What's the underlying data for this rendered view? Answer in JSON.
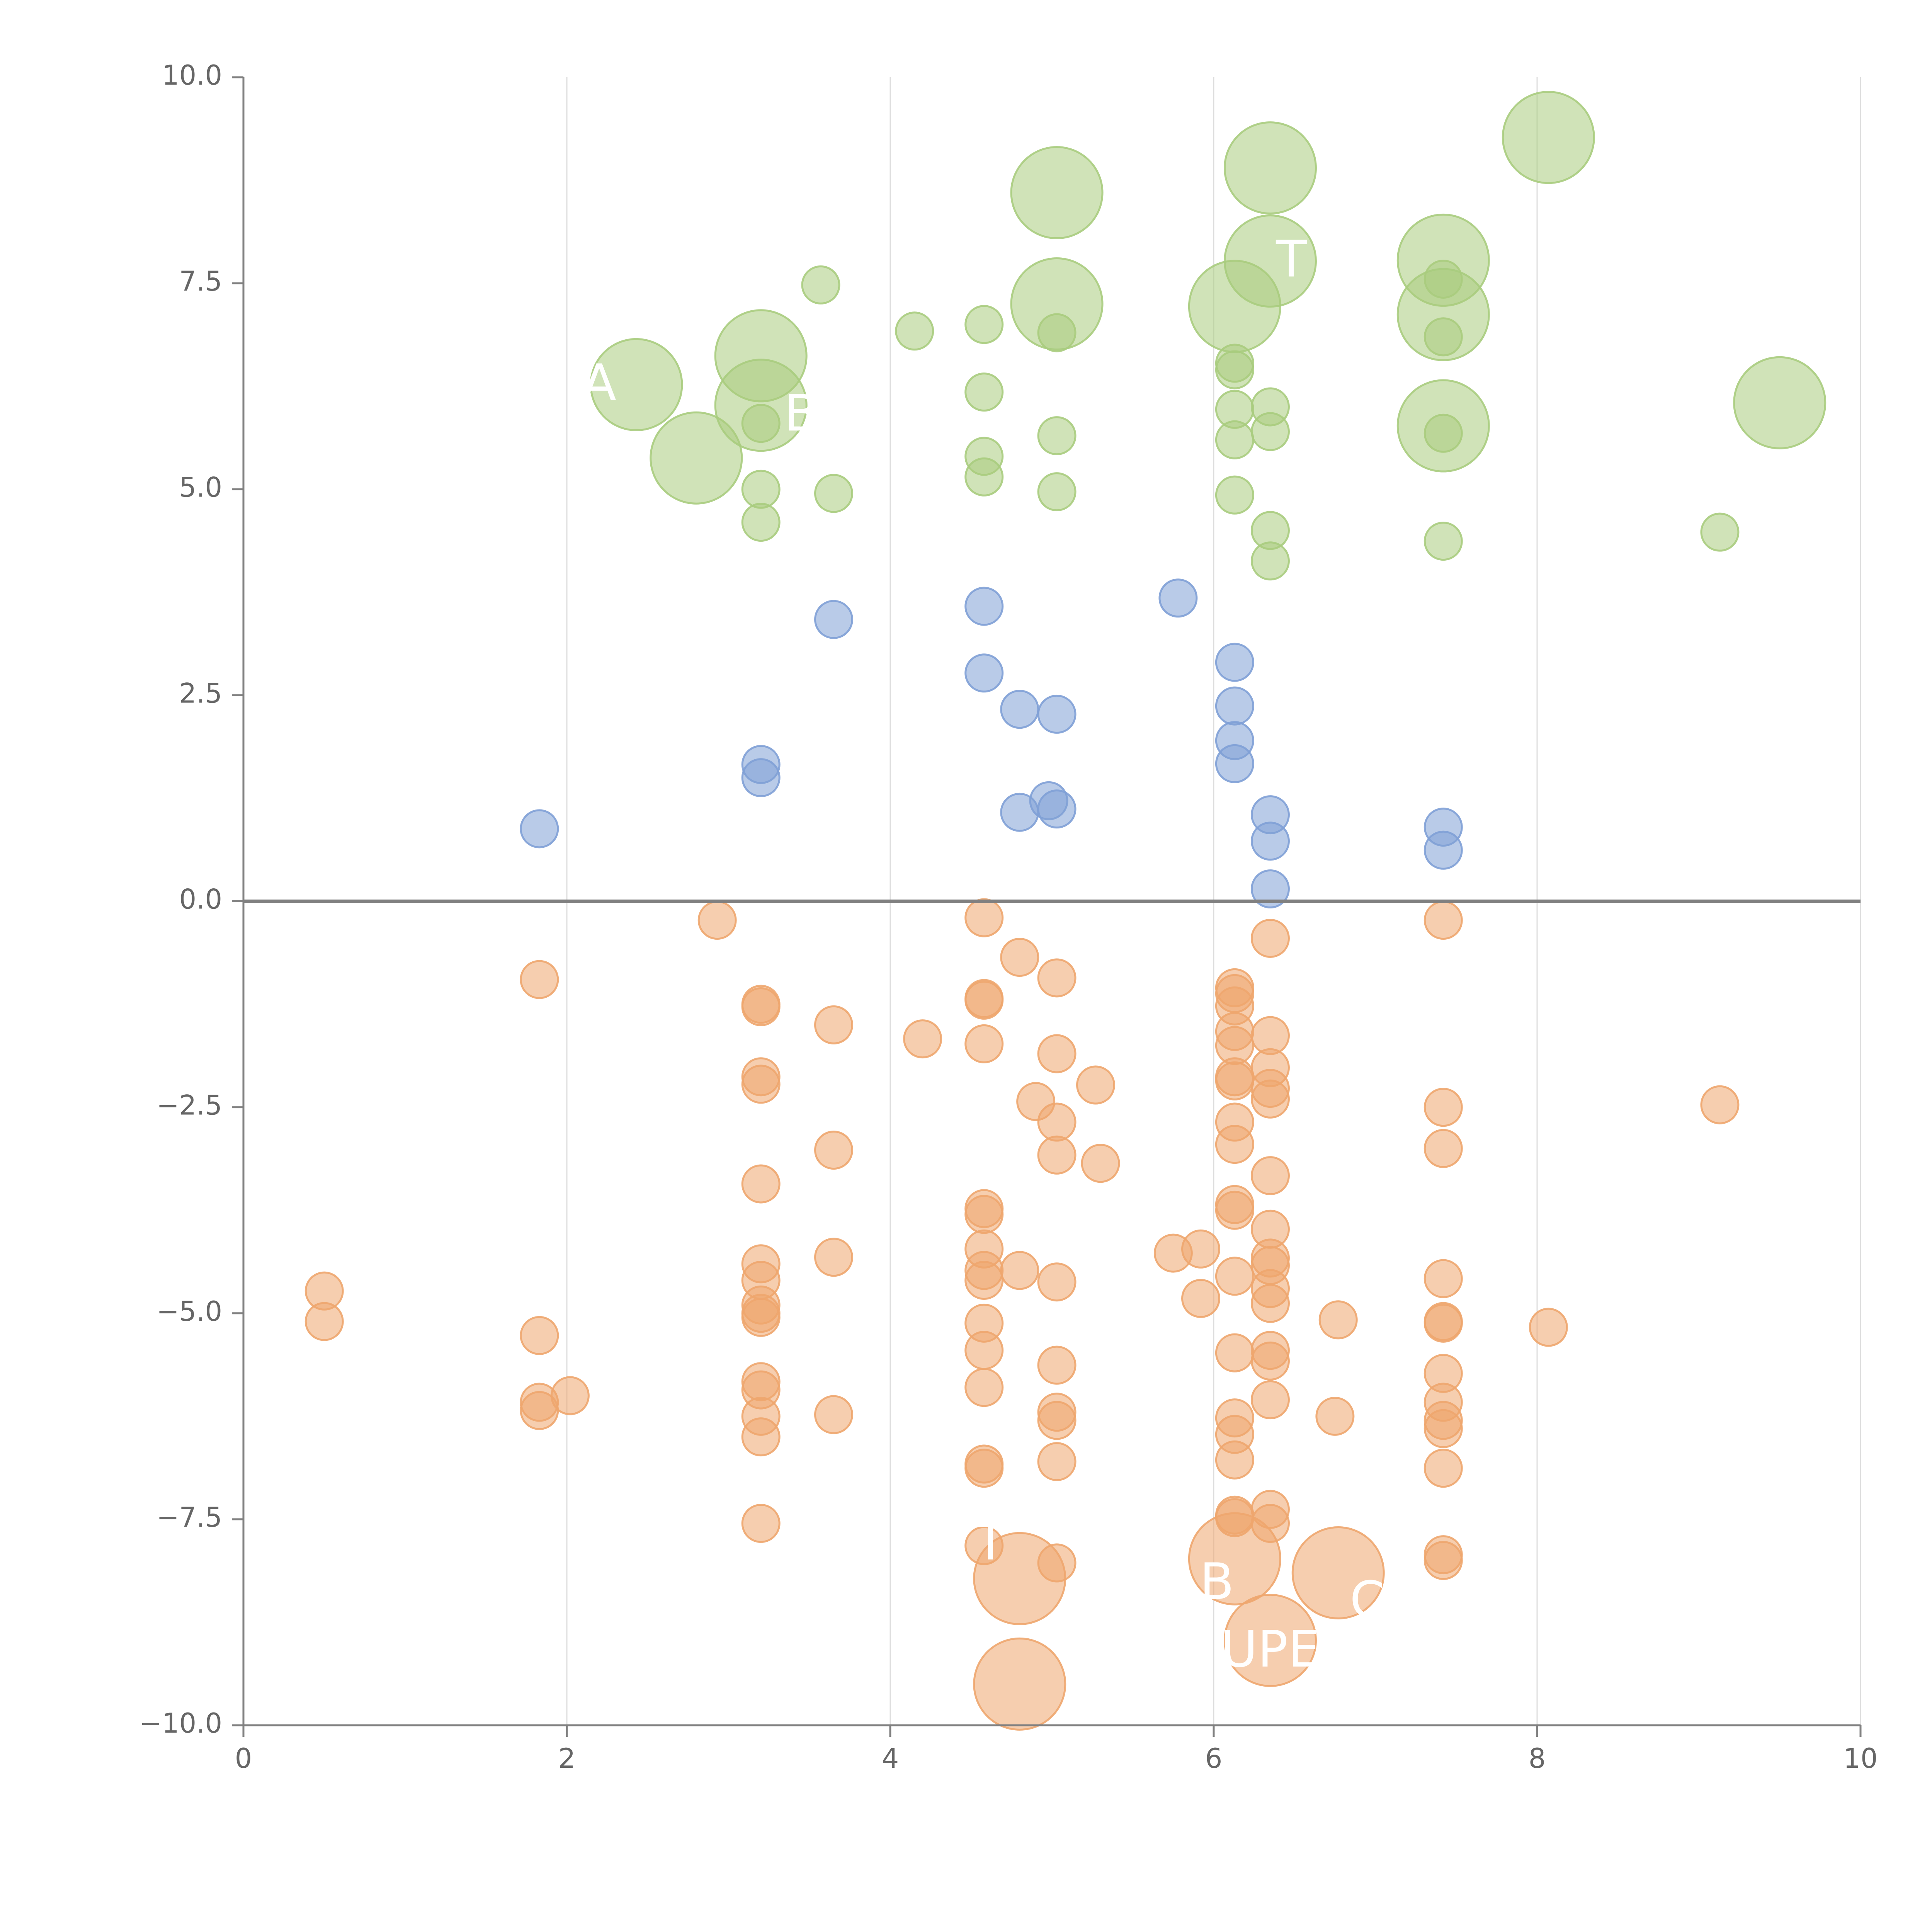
{
  "chart_data": {
    "type": "scatter",
    "title": "",
    "xlabel": "",
    "ylabel": "",
    "xlim": [
      0,
      10
    ],
    "ylim": [
      -10,
      10
    ],
    "x_ticks": [
      0,
      2,
      4,
      6,
      8,
      10
    ],
    "x_tick_labels": [
      "0",
      "2",
      "4",
      "6",
      "8",
      "10"
    ],
    "y_ticks": [
      -10,
      -7.5,
      -5,
      -2.5,
      0,
      2.5,
      5,
      7.5,
      10
    ],
    "y_tick_labels": [
      "−10.0",
      "−7.5",
      "−5.0",
      "−2.5",
      "0.0",
      "2.5",
      "5.0",
      "7.5",
      "10.0"
    ],
    "grid": {
      "vertical": true,
      "horizontal": false
    },
    "zero_line": 0,
    "colors": {
      "green": "#a9cc7e",
      "blue": "#7fa0d6",
      "orange": "#eea66e",
      "axis": "#808080",
      "grid": "#dddddd"
    },
    "series": [
      {
        "color": "green",
        "points": [
          {
            "x": 3.57,
            "y": 7.48,
            "s": 1
          },
          {
            "x": 4.15,
            "y": 6.92,
            "s": 1
          },
          {
            "x": 4.58,
            "y": 7.0,
            "s": 1
          },
          {
            "x": 4.58,
            "y": 6.18,
            "s": 1
          },
          {
            "x": 4.58,
            "y": 5.4,
            "s": 1
          },
          {
            "x": 4.58,
            "y": 5.15,
            "s": 1
          },
          {
            "x": 5.03,
            "y": 6.9,
            "s": 1
          },
          {
            "x": 5.03,
            "y": 5.65,
            "s": 1
          },
          {
            "x": 5.03,
            "y": 4.97,
            "s": 1
          },
          {
            "x": 3.2,
            "y": 5.8,
            "s": 1
          },
          {
            "x": 3.2,
            "y": 5.0,
            "s": 1
          },
          {
            "x": 3.2,
            "y": 4.6,
            "s": 1
          },
          {
            "x": 3.65,
            "y": 4.95,
            "s": 1
          },
          {
            "x": 6.13,
            "y": 6.53,
            "s": 1
          },
          {
            "x": 6.13,
            "y": 6.45,
            "s": 1
          },
          {
            "x": 6.13,
            "y": 5.97,
            "s": 1
          },
          {
            "x": 6.13,
            "y": 5.6,
            "s": 1
          },
          {
            "x": 6.13,
            "y": 4.93,
            "s": 1
          },
          {
            "x": 6.35,
            "y": 6.0,
            "s": 1
          },
          {
            "x": 6.35,
            "y": 5.7,
            "s": 1
          },
          {
            "x": 6.35,
            "y": 4.5,
            "s": 1
          },
          {
            "x": 6.35,
            "y": 4.13,
            "s": 1
          },
          {
            "x": 7.42,
            "y": 7.55,
            "s": 1
          },
          {
            "x": 7.42,
            "y": 6.85,
            "s": 1
          },
          {
            "x": 7.42,
            "y": 5.68,
            "s": 1
          },
          {
            "x": 7.42,
            "y": 4.37,
            "s": 1
          },
          {
            "x": 9.13,
            "y": 4.48,
            "s": 1
          },
          {
            "x": 2.43,
            "y": 6.27,
            "s": 3
          },
          {
            "x": 2.8,
            "y": 5.38,
            "s": 3
          },
          {
            "x": 3.2,
            "y": 6.62,
            "s": 3
          },
          {
            "x": 3.2,
            "y": 6.02,
            "s": 3
          },
          {
            "x": 5.03,
            "y": 8.6,
            "s": 3
          },
          {
            "x": 5.03,
            "y": 7.25,
            "s": 3
          },
          {
            "x": 6.13,
            "y": 7.22,
            "s": 3
          },
          {
            "x": 6.35,
            "y": 8.9,
            "s": 3
          },
          {
            "x": 6.35,
            "y": 7.77,
            "s": 3
          },
          {
            "x": 7.42,
            "y": 7.78,
            "s": 3
          },
          {
            "x": 7.42,
            "y": 7.12,
            "s": 3
          },
          {
            "x": 7.42,
            "y": 5.77,
            "s": 3
          },
          {
            "x": 8.07,
            "y": 9.27,
            "s": 3
          },
          {
            "x": 9.5,
            "y": 6.05,
            "s": 3
          }
        ]
      },
      {
        "color": "blue",
        "points": [
          {
            "x": 1.83,
            "y": 0.88,
            "s": 1
          },
          {
            "x": 3.2,
            "y": 1.66,
            "s": 1
          },
          {
            "x": 3.2,
            "y": 1.5,
            "s": 1
          },
          {
            "x": 3.65,
            "y": 3.42,
            "s": 1
          },
          {
            "x": 4.58,
            "y": 3.58,
            "s": 1
          },
          {
            "x": 4.58,
            "y": 2.77,
            "s": 1
          },
          {
            "x": 4.8,
            "y": 2.33,
            "s": 1
          },
          {
            "x": 4.8,
            "y": 1.08,
            "s": 1
          },
          {
            "x": 5.03,
            "y": 2.27,
            "s": 1
          },
          {
            "x": 4.98,
            "y": 1.22,
            "s": 1
          },
          {
            "x": 5.03,
            "y": 1.12,
            "s": 1
          },
          {
            "x": 5.78,
            "y": 3.68,
            "s": 1
          },
          {
            "x": 6.13,
            "y": 2.9,
            "s": 1
          },
          {
            "x": 6.13,
            "y": 2.37,
            "s": 1
          },
          {
            "x": 6.13,
            "y": 1.95,
            "s": 1
          },
          {
            "x": 6.13,
            "y": 1.67,
            "s": 1
          },
          {
            "x": 6.35,
            "y": 1.05,
            "s": 1
          },
          {
            "x": 6.35,
            "y": 0.73,
            "s": 1
          },
          {
            "x": 6.35,
            "y": 0.15,
            "s": 1
          },
          {
            "x": 7.42,
            "y": 0.9,
            "s": 1
          },
          {
            "x": 7.42,
            "y": 0.62,
            "s": 1
          }
        ]
      },
      {
        "color": "orange",
        "points": [
          {
            "x": 2.93,
            "y": -0.23,
            "s": 1
          },
          {
            "x": 1.83,
            "y": -0.95,
            "s": 1
          },
          {
            "x": 4.58,
            "y": -0.2,
            "s": 1
          },
          {
            "x": 4.8,
            "y": -0.68,
            "s": 1
          },
          {
            "x": 5.03,
            "y": -0.93,
            "s": 1
          },
          {
            "x": 3.2,
            "y": -1.28,
            "s": 1
          },
          {
            "x": 3.2,
            "y": -1.25,
            "s": 1
          },
          {
            "x": 3.65,
            "y": -1.5,
            "s": 1
          },
          {
            "x": 4.2,
            "y": -1.67,
            "s": 1
          },
          {
            "x": 4.58,
            "y": -1.2,
            "s": 1
          },
          {
            "x": 4.58,
            "y": -1.18,
            "s": 1
          },
          {
            "x": 4.58,
            "y": -1.73,
            "s": 1
          },
          {
            "x": 5.03,
            "y": -1.85,
            "s": 1
          },
          {
            "x": 3.2,
            "y": -2.13,
            "s": 1
          },
          {
            "x": 3.2,
            "y": -2.22,
            "s": 1
          },
          {
            "x": 4.9,
            "y": -2.43,
            "s": 1
          },
          {
            "x": 5.03,
            "y": -2.68,
            "s": 1
          },
          {
            "x": 5.27,
            "y": -2.23,
            "s": 1
          },
          {
            "x": 3.65,
            "y": -3.02,
            "s": 1
          },
          {
            "x": 5.03,
            "y": -3.08,
            "s": 1
          },
          {
            "x": 5.3,
            "y": -3.18,
            "s": 1
          },
          {
            "x": 3.2,
            "y": -3.43,
            "s": 1
          },
          {
            "x": 4.58,
            "y": -3.73,
            "s": 1
          },
          {
            "x": 4.58,
            "y": -3.8,
            "s": 1
          },
          {
            "x": 4.58,
            "y": -4.22,
            "s": 1
          },
          {
            "x": 3.65,
            "y": -4.32,
            "s": 1
          },
          {
            "x": 3.2,
            "y": -4.4,
            "s": 1
          },
          {
            "x": 3.2,
            "y": -4.6,
            "s": 1
          },
          {
            "x": 3.2,
            "y": -4.9,
            "s": 1
          },
          {
            "x": 3.2,
            "y": -5.0,
            "s": 1
          },
          {
            "x": 3.2,
            "y": -5.05,
            "s": 1
          },
          {
            "x": 4.58,
            "y": -4.48,
            "s": 1
          },
          {
            "x": 4.58,
            "y": -4.6,
            "s": 1
          },
          {
            "x": 4.8,
            "y": -4.48,
            "s": 1
          },
          {
            "x": 5.03,
            "y": -4.62,
            "s": 1
          },
          {
            "x": 0.5,
            "y": -4.73,
            "s": 1
          },
          {
            "x": 0.5,
            "y": -5.1,
            "s": 1
          },
          {
            "x": 1.83,
            "y": -5.27,
            "s": 1
          },
          {
            "x": 1.83,
            "y": -6.08,
            "s": 1
          },
          {
            "x": 1.83,
            "y": -6.18,
            "s": 1
          },
          {
            "x": 2.02,
            "y": -6.0,
            "s": 1
          },
          {
            "x": 3.2,
            "y": -5.83,
            "s": 1
          },
          {
            "x": 3.2,
            "y": -5.93,
            "s": 1
          },
          {
            "x": 3.2,
            "y": -6.25,
            "s": 1
          },
          {
            "x": 3.2,
            "y": -6.5,
            "s": 1
          },
          {
            "x": 3.2,
            "y": -7.55,
            "s": 1
          },
          {
            "x": 3.65,
            "y": -6.23,
            "s": 1
          },
          {
            "x": 4.58,
            "y": -5.12,
            "s": 1
          },
          {
            "x": 4.58,
            "y": -5.45,
            "s": 1
          },
          {
            "x": 4.58,
            "y": -5.9,
            "s": 1
          },
          {
            "x": 4.58,
            "y": -6.83,
            "s": 1
          },
          {
            "x": 4.58,
            "y": -6.88,
            "s": 1
          },
          {
            "x": 4.58,
            "y": -7.82,
            "s": 1
          },
          {
            "x": 5.03,
            "y": -5.63,
            "s": 1
          },
          {
            "x": 5.03,
            "y": -6.2,
            "s": 1
          },
          {
            "x": 5.03,
            "y": -6.3,
            "s": 1
          },
          {
            "x": 5.03,
            "y": -6.8,
            "s": 1
          },
          {
            "x": 5.03,
            "y": -8.03,
            "s": 1
          },
          {
            "x": 5.75,
            "y": -4.27,
            "s": 1
          },
          {
            "x": 5.92,
            "y": -4.22,
            "s": 1
          },
          {
            "x": 5.92,
            "y": -4.82,
            "s": 1
          },
          {
            "x": 6.13,
            "y": -1.05,
            "s": 1
          },
          {
            "x": 6.13,
            "y": -1.12,
            "s": 1
          },
          {
            "x": 6.13,
            "y": -1.27,
            "s": 1
          },
          {
            "x": 6.13,
            "y": -1.58,
            "s": 1
          },
          {
            "x": 6.13,
            "y": -1.75,
            "s": 1
          },
          {
            "x": 6.13,
            "y": -2.13,
            "s": 1
          },
          {
            "x": 6.13,
            "y": -2.18,
            "s": 1
          },
          {
            "x": 6.13,
            "y": -2.68,
            "s": 1
          },
          {
            "x": 6.13,
            "y": -2.95,
            "s": 1
          },
          {
            "x": 6.13,
            "y": -3.68,
            "s": 1
          },
          {
            "x": 6.13,
            "y": -3.75,
            "s": 1
          },
          {
            "x": 6.13,
            "y": -4.55,
            "s": 1
          },
          {
            "x": 6.13,
            "y": -5.48,
            "s": 1
          },
          {
            "x": 6.13,
            "y": -6.27,
            "s": 1
          },
          {
            "x": 6.13,
            "y": -6.47,
            "s": 1
          },
          {
            "x": 6.13,
            "y": -6.78,
            "s": 1
          },
          {
            "x": 6.13,
            "y": -7.45,
            "s": 1
          },
          {
            "x": 6.13,
            "y": -7.48,
            "s": 1
          },
          {
            "x": 6.35,
            "y": -0.45,
            "s": 1
          },
          {
            "x": 6.35,
            "y": -1.63,
            "s": 1
          },
          {
            "x": 6.35,
            "y": -2.02,
            "s": 1
          },
          {
            "x": 6.35,
            "y": -2.27,
            "s": 1
          },
          {
            "x": 6.35,
            "y": -2.4,
            "s": 1
          },
          {
            "x": 6.35,
            "y": -3.33,
            "s": 1
          },
          {
            "x": 6.35,
            "y": -3.98,
            "s": 1
          },
          {
            "x": 6.35,
            "y": -4.33,
            "s": 1
          },
          {
            "x": 6.35,
            "y": -4.42,
            "s": 1
          },
          {
            "x": 6.35,
            "y": -4.7,
            "s": 1
          },
          {
            "x": 6.35,
            "y": -4.88,
            "s": 1
          },
          {
            "x": 6.35,
            "y": -5.45,
            "s": 1
          },
          {
            "x": 6.35,
            "y": -5.58,
            "s": 1
          },
          {
            "x": 6.35,
            "y": -6.05,
            "s": 1
          },
          {
            "x": 6.35,
            "y": -7.38,
            "s": 1
          },
          {
            "x": 6.35,
            "y": -7.55,
            "s": 1
          },
          {
            "x": 6.77,
            "y": -5.08,
            "s": 1
          },
          {
            "x": 6.75,
            "y": -6.25,
            "s": 1
          },
          {
            "x": 7.42,
            "y": -0.23,
            "s": 1
          },
          {
            "x": 7.42,
            "y": -2.5,
            "s": 1
          },
          {
            "x": 7.42,
            "y": -3.0,
            "s": 1
          },
          {
            "x": 7.42,
            "y": -4.58,
            "s": 1
          },
          {
            "x": 7.42,
            "y": -5.1,
            "s": 1
          },
          {
            "x": 7.42,
            "y": -5.12,
            "s": 1
          },
          {
            "x": 7.42,
            "y": -5.73,
            "s": 1
          },
          {
            "x": 7.42,
            "y": -6.08,
            "s": 1
          },
          {
            "x": 7.42,
            "y": -6.3,
            "s": 1
          },
          {
            "x": 7.42,
            "y": -6.4,
            "s": 1
          },
          {
            "x": 7.42,
            "y": -6.88,
            "s": 1
          },
          {
            "x": 7.42,
            "y": -7.93,
            "s": 1
          },
          {
            "x": 7.42,
            "y": -8.0,
            "s": 1
          },
          {
            "x": 8.07,
            "y": -5.17,
            "s": 1
          },
          {
            "x": 9.13,
            "y": -2.47,
            "s": 1
          },
          {
            "x": 4.8,
            "y": -8.22,
            "s": 3
          },
          {
            "x": 4.8,
            "y": -9.5,
            "s": 3
          },
          {
            "x": 6.13,
            "y": -7.98,
            "s": 3
          },
          {
            "x": 6.35,
            "y": -8.97,
            "s": 3
          },
          {
            "x": 6.77,
            "y": -8.15,
            "s": 3
          }
        ]
      }
    ],
    "bubble_labels": [
      {
        "text": "A",
        "x": 2.2,
        "y": 6.25
      },
      {
        "text": "B",
        "x": 3.45,
        "y": 5.88
      },
      {
        "text": "T",
        "x": 6.48,
        "y": 7.75
      },
      {
        "text": "T",
        "x": 4.62,
        "y": -7.82
      },
      {
        "text": "B",
        "x": 6.02,
        "y": -8.3
      },
      {
        "text": "UPE",
        "x": 6.35,
        "y": -9.12
      },
      {
        "text": "C",
        "x": 6.95,
        "y": -8.52
      }
    ]
  }
}
